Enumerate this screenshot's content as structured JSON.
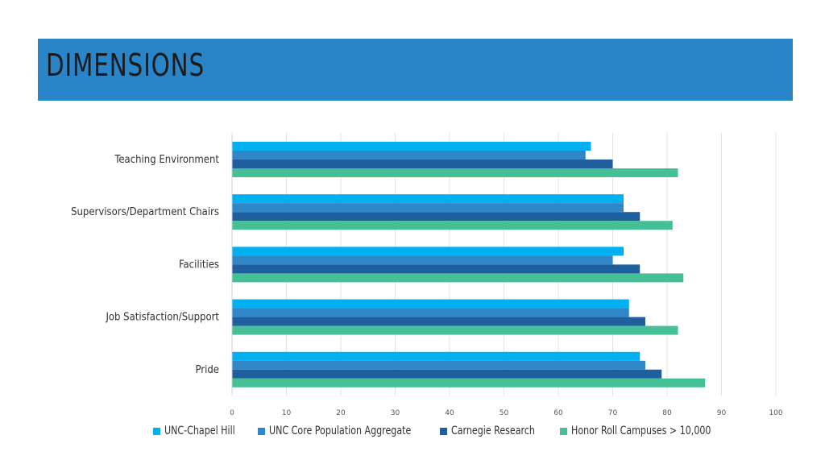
{
  "slide": {
    "title": "DIMENSIONS"
  },
  "colors": {
    "title_bar": "#2a84c8",
    "series": [
      "#00b0f0",
      "#2f86c8",
      "#1f5f9e",
      "#45bf95"
    ]
  },
  "chart_data": {
    "type": "bar",
    "orientation": "horizontal",
    "categories": [
      "Teaching Environment",
      "Supervisors/Department Chairs",
      "Facilities",
      "Job Satisfaction/Support",
      "Pride"
    ],
    "series": [
      {
        "name": "UNC-Chapel Hill",
        "values": [
          66,
          72,
          72,
          73,
          75
        ]
      },
      {
        "name": "UNC Core Population Aggregate",
        "values": [
          65,
          72,
          70,
          73,
          76
        ]
      },
      {
        "name": "Carnegie Research",
        "values": [
          70,
          75,
          75,
          76,
          79
        ]
      },
      {
        "name": "Honor Roll Campuses > 10,000",
        "values": [
          82,
          81,
          83,
          82,
          87
        ]
      }
    ],
    "xlim": [
      0,
      100
    ],
    "x_ticks": [
      "0",
      "10",
      "20",
      "30",
      "40",
      "50",
      "60",
      "70",
      "80",
      "90",
      "100"
    ],
    "grid": "vertical",
    "legend_position": "bottom"
  }
}
